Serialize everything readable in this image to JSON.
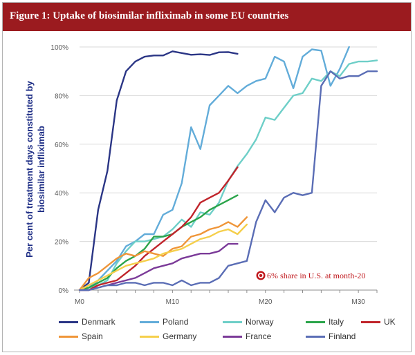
{
  "figure": {
    "title": "Figure 1: Uptake of biosimilar infliximab in some EU countries"
  },
  "chart_data": {
    "type": "line",
    "ylabel": "Per cent of treatment days constituted by biosimilar infliximab",
    "xlabel": "",
    "xlim": [
      0,
      32
    ],
    "ylim": [
      0,
      100
    ],
    "x_ticks": [
      0,
      10,
      20,
      30
    ],
    "x_tick_labels": [
      "M0",
      "M10",
      "M20",
      "M30"
    ],
    "y_ticks": [
      0,
      20,
      40,
      60,
      80,
      100
    ],
    "y_tick_labels": [
      "0%",
      "20%",
      "40%",
      "60%",
      "80%",
      "100%"
    ],
    "grid": "horizontal",
    "legend_position": "bottom",
    "annotation": {
      "text": "6% share in U.S. at month-20",
      "x": 19.5,
      "y": 6,
      "color": "#c0181d"
    },
    "series": [
      {
        "name": "Denmark",
        "color": "#2a3585",
        "x": [
          0,
          1,
          2,
          3,
          4,
          5,
          6,
          7,
          8,
          9,
          10,
          11,
          12,
          13,
          14,
          15,
          16,
          17
        ],
        "values": [
          0,
          3,
          33,
          49,
          78,
          90,
          94,
          96,
          96.5,
          96.5,
          98.2,
          97.5,
          96.8,
          97,
          96.7,
          97.8,
          97.9,
          97.2
        ]
      },
      {
        "name": "Poland",
        "color": "#62acd9",
        "x": [
          0,
          1,
          2,
          3,
          4,
          5,
          6,
          7,
          8,
          9,
          10,
          11,
          12,
          13,
          14,
          15,
          16,
          17,
          18,
          19,
          20,
          21,
          22,
          23,
          24,
          25,
          26,
          27,
          28,
          29
        ],
        "values": [
          0,
          1,
          4,
          8,
          12,
          18,
          20,
          23,
          23,
          31,
          33,
          44,
          67,
          58,
          76,
          80,
          84,
          81,
          84,
          86,
          87,
          96,
          94,
          83,
          96,
          99,
          98.5,
          84,
          91,
          100
        ]
      },
      {
        "name": "Norway",
        "color": "#6ecfc8",
        "x": [
          0,
          1,
          2,
          3,
          4,
          5,
          6,
          7,
          8,
          9,
          10,
          11,
          12,
          13,
          14,
          15,
          16,
          17,
          18,
          19,
          20,
          21,
          22,
          23,
          24,
          25,
          26,
          27,
          28,
          29,
          30,
          31,
          32
        ],
        "values": [
          0,
          1,
          2,
          4,
          11,
          16,
          20,
          20,
          21,
          22,
          25,
          29,
          26,
          32,
          31,
          36,
          45,
          51,
          56,
          62,
          71,
          70,
          75,
          80,
          81,
          87,
          86,
          90,
          88,
          93,
          94,
          94,
          94.5
        ]
      },
      {
        "name": "Italy",
        "color": "#2aa44a",
        "x": [
          0,
          1,
          2,
          3,
          4,
          5,
          6,
          7,
          8,
          9,
          10,
          11,
          12,
          13,
          14,
          15,
          16,
          17
        ],
        "values": [
          0,
          1,
          3,
          5,
          9,
          12,
          14,
          17,
          22,
          22,
          23,
          26,
          28,
          30,
          33,
          35,
          37,
          39
        ]
      },
      {
        "name": "UK",
        "color": "#c0242b",
        "x": [
          0,
          1,
          2,
          3,
          4,
          5,
          6,
          7,
          8,
          9,
          10,
          11,
          12,
          13,
          14,
          15,
          16,
          17
        ],
        "values": [
          0,
          0,
          2,
          3,
          4,
          7,
          10,
          14,
          17,
          20,
          23,
          26,
          30,
          36,
          38,
          40,
          45,
          50.5
        ]
      },
      {
        "name": "Spain",
        "color": "#ef9538",
        "x": [
          0,
          1,
          2,
          3,
          4,
          5,
          6,
          7,
          8,
          9,
          10,
          11,
          12,
          13,
          14,
          15,
          16,
          17,
          18
        ],
        "values": [
          0,
          5,
          7,
          10,
          13,
          15,
          14,
          16,
          15,
          14,
          17,
          18,
          22,
          23,
          25,
          26,
          28,
          26,
          30
        ]
      },
      {
        "name": "Germany",
        "color": "#f5cf4b",
        "x": [
          0,
          1,
          2,
          3,
          4,
          5,
          6,
          7,
          8,
          9,
          10,
          11,
          12,
          13,
          14,
          15,
          16,
          17,
          18
        ],
        "values": [
          0,
          2,
          4,
          6,
          8,
          10,
          11,
          12,
          13,
          15,
          16,
          17,
          19,
          21,
          22,
          24,
          25,
          23,
          27
        ]
      },
      {
        "name": "France",
        "color": "#7b3a98",
        "x": [
          0,
          1,
          2,
          3,
          4,
          5,
          6,
          7,
          8,
          9,
          10,
          11,
          12,
          13,
          14,
          15,
          16,
          17
        ],
        "values": [
          0,
          0,
          1,
          2,
          3,
          4,
          5,
          7,
          9,
          10,
          11,
          13,
          14,
          15,
          15,
          16,
          19,
          19
        ]
      },
      {
        "name": "Finland",
        "color": "#5a6db5",
        "x": [
          0,
          1,
          2,
          3,
          4,
          5,
          6,
          7,
          8,
          9,
          10,
          11,
          12,
          13,
          14,
          15,
          16,
          17,
          18,
          19,
          20,
          21,
          22,
          23,
          24,
          25,
          26,
          27,
          28,
          29,
          30,
          31,
          32
        ],
        "values": [
          0,
          0,
          1,
          2,
          2,
          3,
          3,
          2,
          3,
          3,
          2,
          4,
          2,
          3,
          3,
          5,
          10,
          11,
          12,
          28,
          37,
          32,
          38,
          40,
          39,
          40,
          84,
          90,
          87,
          88,
          88,
          90,
          90
        ]
      }
    ]
  }
}
